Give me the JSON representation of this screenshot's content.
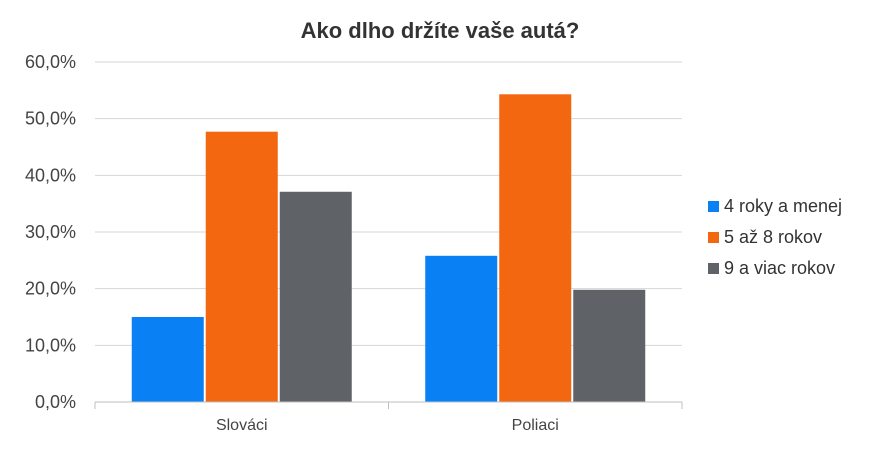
{
  "chart_data": {
    "type": "bar",
    "title": "Ako dlho držíte vaše autá?",
    "categories": [
      "Slováci",
      "Poliaci"
    ],
    "series": [
      {
        "name": "4 roky a menej",
        "values": [
          15.0,
          25.8
        ],
        "color": "#0a80f5"
      },
      {
        "name": "5 až 8 rokov",
        "values": [
          47.7,
          54.3
        ],
        "color": "#f2670f"
      },
      {
        "name": "9 a viac rokov",
        "values": [
          37.1,
          19.8
        ],
        "color": "#5f6368"
      }
    ],
    "ylim": [
      0,
      60
    ],
    "yticks": [
      "0,0%",
      "10,0%",
      "20,0%",
      "30,0%",
      "40,0%",
      "50,0%",
      "60,0%"
    ],
    "grid": true,
    "legend_position": "right"
  }
}
